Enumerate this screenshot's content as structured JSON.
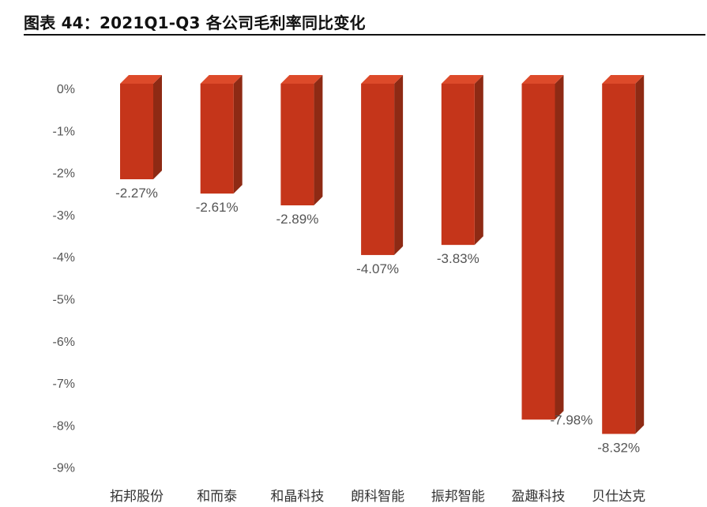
{
  "header": {
    "title": "图表 44：2021Q1-Q3 各公司毛利率同比变化"
  },
  "colors": {
    "bar_front": "#c5351a",
    "bar_side": "#8e2a14",
    "bar_top": "#dd4a2a"
  },
  "chart_data": {
    "type": "bar",
    "title": "",
    "xlabel": "",
    "ylabel": "",
    "ylim": [
      -9,
      0
    ],
    "yticks": [
      0,
      -1,
      -2,
      -3,
      -4,
      -5,
      -6,
      -7,
      -8,
      -9
    ],
    "ytick_labels": [
      "0%",
      "-1%",
      "-2%",
      "-3%",
      "-4%",
      "-5%",
      "-6%",
      "-7%",
      "-8%",
      "-9%"
    ],
    "categories": [
      "拓邦股份",
      "和而泰",
      "和晶科技",
      "朗科智能",
      "振邦智能",
      "盈趣科技",
      "贝仕达克"
    ],
    "values": [
      -2.27,
      -2.61,
      -2.89,
      -4.07,
      -3.83,
      -7.98,
      -8.32
    ],
    "data_labels": [
      "-2.27%",
      "-2.61%",
      "-2.89%",
      "-4.07%",
      "-3.83%",
      "-7.98%",
      "-8.32%"
    ],
    "grid": false,
    "style": "3d"
  }
}
